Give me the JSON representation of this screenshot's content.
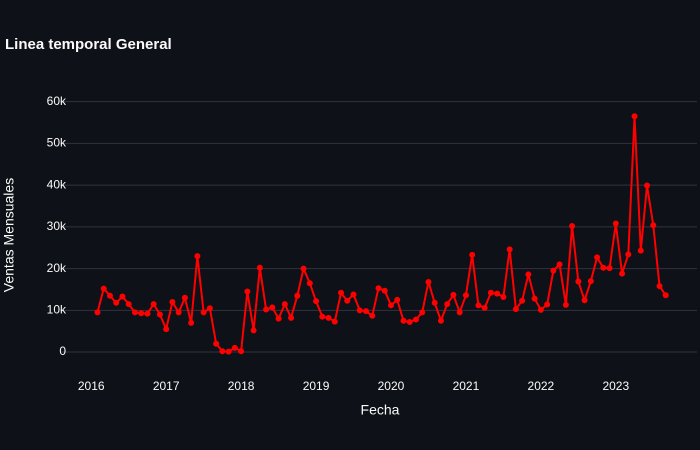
{
  "chart_data": {
    "type": "line",
    "title": "Linea temporal General",
    "xlabel": "Fecha",
    "ylabel": "Ventas Mensuales",
    "x": [
      "2016-02",
      "2016-03",
      "2016-04",
      "2016-05",
      "2016-06",
      "2016-07",
      "2016-08",
      "2016-09",
      "2016-10",
      "2016-11",
      "2016-12",
      "2017-01",
      "2017-02",
      "2017-03",
      "2017-04",
      "2017-05",
      "2017-06",
      "2017-07",
      "2017-08",
      "2017-09",
      "2017-10",
      "2017-11",
      "2017-12",
      "2018-01",
      "2018-02",
      "2018-03",
      "2018-04",
      "2018-05",
      "2018-06",
      "2018-07",
      "2018-08",
      "2018-09",
      "2018-10",
      "2018-11",
      "2018-12",
      "2019-01",
      "2019-02",
      "2019-03",
      "2019-04",
      "2019-05",
      "2019-06",
      "2019-07",
      "2019-08",
      "2019-09",
      "2019-10",
      "2019-11",
      "2019-12",
      "2020-01",
      "2020-02",
      "2020-03",
      "2020-04",
      "2020-05",
      "2020-06",
      "2020-07",
      "2020-08",
      "2020-09",
      "2020-10",
      "2020-11",
      "2020-12",
      "2021-01",
      "2021-02",
      "2021-03",
      "2021-04",
      "2021-05",
      "2021-06",
      "2021-07",
      "2021-08",
      "2021-09",
      "2021-10",
      "2021-11",
      "2021-12",
      "2022-01",
      "2022-02",
      "2022-03",
      "2022-04",
      "2022-05",
      "2022-06",
      "2022-07",
      "2022-08",
      "2022-09",
      "2022-10",
      "2022-11",
      "2022-12",
      "2023-01",
      "2023-02",
      "2023-03",
      "2023-04",
      "2023-05",
      "2023-06",
      "2023-07",
      "2023-08",
      "2023-09"
    ],
    "series": [
      {
        "name": "Ventas Mensuales",
        "color": "#ff0000",
        "values": [
          9500,
          15200,
          13500,
          11800,
          13300,
          11500,
          9500,
          9300,
          9200,
          11500,
          9000,
          5500,
          12000,
          9500,
          13000,
          7000,
          23000,
          9500,
          10500,
          2000,
          200,
          100,
          1000,
          200,
          14500,
          5200,
          20200,
          10200,
          10700,
          8000,
          11500,
          8200,
          13500,
          20000,
          16500,
          12200,
          8500,
          8200,
          7300,
          14200,
          12300,
          13800,
          10000,
          9800,
          8700,
          15300,
          14700,
          11200,
          12500,
          7500,
          7200,
          7800,
          9500,
          16800,
          11800,
          7500,
          11500,
          13700,
          9500,
          13600,
          23300,
          11200,
          10600,
          14200,
          14000,
          13200,
          24600,
          10300,
          12300,
          18600,
          12800,
          10100,
          11400,
          19500,
          21000,
          11300,
          30200,
          16900,
          12400,
          17000,
          22700,
          20200,
          20100,
          30800,
          18800,
          23400,
          56500,
          24300,
          39900,
          30400,
          15800,
          13600
        ]
      }
    ],
    "xlim": [
      "2015-08",
      "2024-02"
    ],
    "xticks": [
      {
        "value": "2016-01",
        "label": "2016"
      },
      {
        "value": "2017-01",
        "label": "2017"
      },
      {
        "value": "2018-01",
        "label": "2018"
      },
      {
        "value": "2019-01",
        "label": "2019"
      },
      {
        "value": "2020-01",
        "label": "2020"
      },
      {
        "value": "2021-01",
        "label": "2021"
      },
      {
        "value": "2022-01",
        "label": "2022"
      },
      {
        "value": "2023-01",
        "label": "2023"
      }
    ],
    "ylim": [
      -5500,
      62800
    ],
    "yticks": [
      0,
      {
        "value": 10000,
        "label": "10k"
      },
      {
        "value": 20000,
        "label": "20k"
      },
      {
        "value": 30000,
        "label": "30k"
      },
      {
        "value": 40000,
        "label": "40k"
      },
      {
        "value": 50000,
        "label": "50k"
      },
      {
        "value": 60000,
        "label": "60k"
      }
    ],
    "grid": true
  }
}
